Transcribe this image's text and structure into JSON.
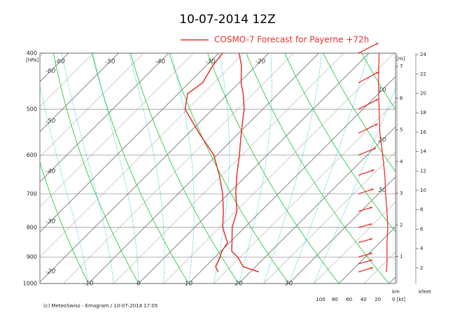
{
  "chart_data": {
    "type": "emagram",
    "title": "10-07-2014  12Z",
    "legend": "COSMO-7 Forecast for Payerne   +72h",
    "y_label": "[hPa]",
    "footer": "(c) MeteoSwiss - Emagram  /  10-07-2014  17:05",
    "log_y": true,
    "skew": 1,
    "ylim": [
      1000,
      400
    ],
    "yticks": [
      400,
      500,
      600,
      700,
      800,
      900,
      1000
    ],
    "xlim": [
      -19.7,
      51.3
    ],
    "xticks": [
      -10,
      0,
      10,
      20,
      30
    ],
    "isotherm_labels_top": [
      -60,
      -50,
      -40,
      -30,
      -20
    ],
    "isotherm_labels_left": [
      -60,
      -50,
      -40,
      -30,
      -20
    ],
    "isotherm_labels_right": [
      10,
      20,
      30
    ],
    "pressure": [
      955,
      935,
      900,
      880,
      850,
      800,
      750,
      700,
      650,
      600,
      550,
      500,
      470,
      450,
      420,
      400
    ],
    "series": [
      {
        "color": "#e8322d",
        "values": [
          21.7,
          17.5,
          14.5,
          12.2,
          10.5,
          7.5,
          5.2,
          1.5,
          -2.0,
          -5.5,
          -9.5,
          -13.7,
          -17.0,
          -19.6,
          -23.0,
          -25.9
        ]
      },
      {
        "color": "#e8322d",
        "values": [
          13.6,
          12.0,
          11.0,
          10.2,
          9.6,
          5.6,
          2.5,
          -1.1,
          -5.5,
          -10.6,
          -17.9,
          -25.5,
          -28.1,
          -27.3,
          -28.7,
          -29.2
        ]
      }
    ],
    "height_label": "[m]",
    "height_ylim": [
      0.15,
      7.42
    ],
    "height_ticks": [
      1,
      2,
      3,
      4,
      5,
      6,
      7
    ],
    "km_label": "km",
    "kfeet_label": "kfeet",
    "kfeet_ylim": [
      0.4,
      24.15
    ],
    "kfeet_ticks": [
      2,
      4,
      6,
      8,
      10,
      12,
      14,
      16,
      18,
      20,
      22,
      24
    ],
    "wind": {
      "color": "#e8322d",
      "pressure": [
        955,
        925,
        900,
        850,
        800,
        750,
        700,
        650,
        600,
        550,
        500,
        450,
        400
      ],
      "speed": [
        8,
        7,
        7,
        7,
        6,
        7,
        9,
        10,
        13,
        17,
        18,
        19,
        18
      ],
      "xlim": [
        100,
        0
      ],
      "xticks": [
        100,
        80,
        60,
        40,
        20,
        {
          "value": 0,
          "label": "0 [kt]"
        }
      ]
    }
  }
}
